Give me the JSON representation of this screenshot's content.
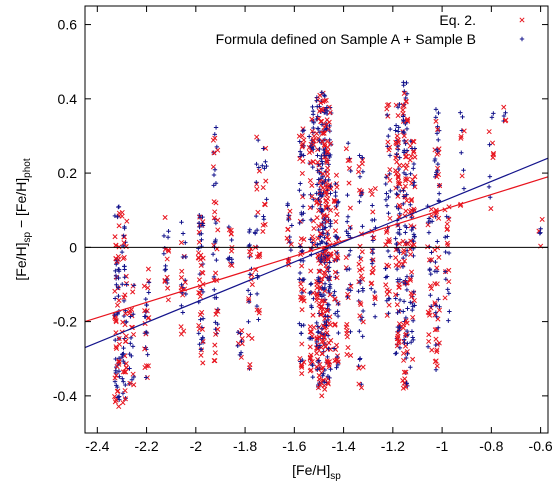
{
  "chart_data": {
    "type": "scatter",
    "xlabel": "[Fe/H]",
    "xlabel_sub": "sp",
    "ylabel_parts": [
      {
        "t": "[Fe/H]",
        "sub": false
      },
      {
        "t": "sp",
        "sub": true
      },
      {
        "t": " − [Fe/H]",
        "sub": false
      },
      {
        "t": "phot",
        "sub": true
      }
    ],
    "xlim": [
      -2.45,
      -0.57
    ],
    "ylim": [
      -0.5,
      0.65
    ],
    "xticks": [
      -2.4,
      -2.2,
      -2,
      -1.8,
      -1.6,
      -1.4,
      -1.2,
      -1,
      -0.8,
      -0.6
    ],
    "xtick_labels": [
      "-2.4",
      "-2.2",
      "-2",
      "-1.8",
      "-1.6",
      "-1.4",
      "-1.2",
      "-1",
      "-0.8",
      "-0.6"
    ],
    "yticks": [
      -0.4,
      -0.2,
      0,
      0.2,
      0.4,
      0.6
    ],
    "ytick_labels": [
      "-0.4",
      "-0.2",
      "0",
      "0.2",
      "0.4",
      "0.6"
    ],
    "legend": {
      "position": "top-right",
      "entries": [
        {
          "name": "Eq. 2.",
          "marker": "x",
          "color": "#e8141e"
        },
        {
          "name": "Formula defined on Sample A + Sample B",
          "marker": "+",
          "color": "#14148c"
        }
      ]
    },
    "columns": [
      {
        "x": -2.32,
        "ymin": -0.43,
        "ymax": 0.12,
        "n": 40
      },
      {
        "x": -2.29,
        "ymin": -0.42,
        "ymax": 0.11,
        "n": 30
      },
      {
        "x": -2.26,
        "ymin": -0.38,
        "ymax": -0.1,
        "n": 12
      },
      {
        "x": -2.2,
        "ymin": -0.37,
        "ymax": -0.05,
        "n": 15
      },
      {
        "x": -2.12,
        "ymin": -0.15,
        "ymax": 0.09,
        "n": 10
      },
      {
        "x": -2.05,
        "ymin": -0.25,
        "ymax": 0.1,
        "n": 12
      },
      {
        "x": -1.98,
        "ymin": -0.35,
        "ymax": 0.1,
        "n": 30
      },
      {
        "x": -1.92,
        "ymin": -0.31,
        "ymax": 0.35,
        "n": 25
      },
      {
        "x": -1.86,
        "ymin": -0.05,
        "ymax": 0.07,
        "n": 8
      },
      {
        "x": -1.82,
        "ymin": -0.3,
        "ymax": -0.22,
        "n": 6
      },
      {
        "x": -1.78,
        "ymin": -0.33,
        "ymax": 0.07,
        "n": 12
      },
      {
        "x": -1.75,
        "ymin": -0.2,
        "ymax": 0.3,
        "n": 14
      },
      {
        "x": -1.72,
        "ymin": 0.0,
        "ymax": 0.28,
        "n": 8
      },
      {
        "x": -1.62,
        "ymin": -0.05,
        "ymax": 0.12,
        "n": 10
      },
      {
        "x": -1.57,
        "ymin": -0.34,
        "ymax": 0.32,
        "n": 35
      },
      {
        "x": -1.53,
        "ymin": -0.35,
        "ymax": 0.38,
        "n": 40
      },
      {
        "x": -1.5,
        "ymin": -0.38,
        "ymax": 0.41,
        "n": 70
      },
      {
        "x": -1.48,
        "ymin": -0.4,
        "ymax": 0.42,
        "n": 80
      },
      {
        "x": -1.46,
        "ymin": -0.38,
        "ymax": 0.38,
        "n": 60
      },
      {
        "x": -1.43,
        "ymin": -0.35,
        "ymax": 0.2,
        "n": 30
      },
      {
        "x": -1.38,
        "ymin": -0.3,
        "ymax": 0.3,
        "n": 20
      },
      {
        "x": -1.33,
        "ymin": -0.38,
        "ymax": 0.28,
        "n": 25
      },
      {
        "x": -1.28,
        "ymin": -0.22,
        "ymax": 0.16,
        "n": 15
      },
      {
        "x": -1.22,
        "ymin": -0.2,
        "ymax": 0.39,
        "n": 25
      },
      {
        "x": -1.18,
        "ymin": -0.3,
        "ymax": 0.4,
        "n": 50
      },
      {
        "x": -1.15,
        "ymin": -0.38,
        "ymax": 0.45,
        "n": 60
      },
      {
        "x": -1.12,
        "ymin": -0.33,
        "ymax": 0.3,
        "n": 35
      },
      {
        "x": -1.05,
        "ymin": -0.3,
        "ymax": 0.12,
        "n": 15
      },
      {
        "x": -1.02,
        "ymin": -0.35,
        "ymax": 0.39,
        "n": 35
      },
      {
        "x": -0.98,
        "ymin": -0.2,
        "ymax": 0.11,
        "n": 12
      },
      {
        "x": -0.92,
        "ymin": 0.1,
        "ymax": 0.38,
        "n": 6
      },
      {
        "x": -0.8,
        "ymin": 0.1,
        "ymax": 0.41,
        "n": 6
      },
      {
        "x": -0.75,
        "ymin": 0.34,
        "ymax": 0.39,
        "n": 3
      },
      {
        "x": -0.6,
        "ymin": 0.0,
        "ymax": 0.08,
        "n": 3
      }
    ],
    "fit_lines": [
      {
        "color": "#e8141e",
        "x": [
          -2.45,
          -0.57
        ],
        "y": [
          -0.2,
          0.19
        ]
      },
      {
        "color": "#14148c",
        "x": [
          -2.45,
          -0.57
        ],
        "y": [
          -0.27,
          0.24
        ]
      }
    ],
    "zero_line": 0
  }
}
